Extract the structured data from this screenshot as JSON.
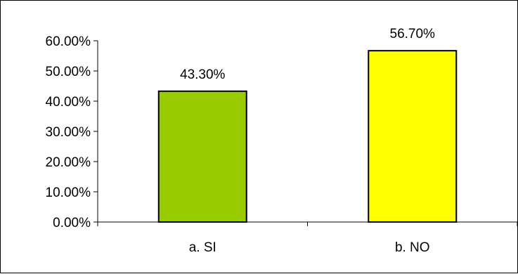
{
  "chart_data": {
    "type": "bar",
    "title": "",
    "xlabel": "",
    "ylabel": "",
    "categories": [
      "a. SI",
      "b. NO"
    ],
    "values": [
      43.3,
      56.7
    ],
    "data_labels": [
      "43.30%",
      "56.70%"
    ],
    "bar_colors": [
      "#99cc00",
      "#ffff00"
    ],
    "bar_border_color": "#000000",
    "ylim": [
      0,
      60
    ],
    "yticks": [
      0,
      10,
      20,
      30,
      40,
      50,
      60
    ],
    "ytick_labels": [
      "0.00%",
      "10.00%",
      "20.00%",
      "30.00%",
      "40.00%",
      "50.00%",
      "60.00%"
    ],
    "grid": false,
    "legend": "none"
  }
}
